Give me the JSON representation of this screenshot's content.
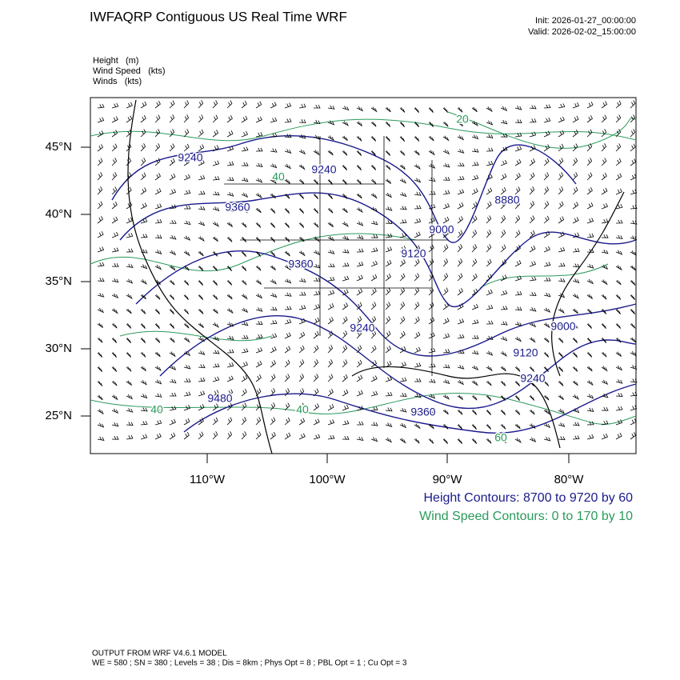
{
  "header": {
    "title": "IWFAQRP Contiguous US Real Time WRF",
    "init": "Init: 2026-01-27_00:00:00",
    "valid": "Valid: 2026-02-02_15:00:00"
  },
  "fields": [
    "Height   (m)",
    "Wind Speed   (kts)",
    "Winds   (kts)"
  ],
  "map": {
    "lat_labels": [
      "45°N",
      "40°N",
      "35°N",
      "30°N",
      "25°N"
    ],
    "lon_labels": [
      "110°W",
      "100°W",
      "90°W",
      "80°W"
    ],
    "height_labels": [
      "9240",
      "9240",
      "9360",
      "9360",
      "9000",
      "9120",
      "8880",
      "9240",
      "9000",
      "9120",
      "9240",
      "9480",
      "9360"
    ],
    "speed_labels": [
      "20",
      "40",
      "40",
      "60",
      "40"
    ]
  },
  "legend": {
    "height": "Height Contours: 8700 to 9720 by 60",
    "speed": "Wind Speed Contours: 0 to 170 by 10"
  },
  "footer": {
    "model": "OUTPUT FROM WRF V4.6.1 MODEL",
    "settings": "WE = 580 ; SN = 380 ; Levels = 38 ; Dis = 8km ; Phys Opt = 8 ; PBL Opt = 1 ; Cu Opt = 3"
  }
}
